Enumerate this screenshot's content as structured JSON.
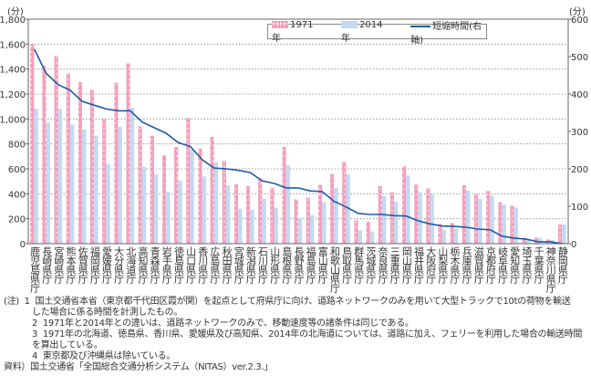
{
  "chart_data": {
    "type": "bar",
    "left_unit": "(分)",
    "right_unit": "(分)",
    "ylim": [
      0,
      1800
    ],
    "y2lim": [
      0,
      600
    ],
    "yticks": [
      "0",
      "200",
      "400",
      "600",
      "800",
      "1,000",
      "1,200",
      "1,400",
      "1,600",
      "1,800"
    ],
    "y2ticks": [
      "0",
      "100",
      "200",
      "300",
      "400",
      "500",
      "600"
    ],
    "grid": "dotted horizontal",
    "legend_placement": "top-right",
    "categories": [
      "鹿児島県庁",
      "長崎県庁",
      "宮崎県庁",
      "熊本県庁",
      "佐賀県庁",
      "福岡県庁",
      "愛媛県庁",
      "大分県庁",
      "北海道庁",
      "高知県庁",
      "青森県庁",
      "岩手県庁",
      "徳島県庁",
      "山口県庁",
      "香川県庁",
      "広島県庁",
      "秋田県庁",
      "宮城県庁",
      "新潟県庁",
      "石川県庁",
      "山形県庁",
      "島根県庁",
      "長野県庁",
      "福島県庁",
      "富山県庁",
      "和歌山県庁",
      "鳥取県庁",
      "群馬県庁",
      "茨城県庁",
      "奈良県庁",
      "三重県庁",
      "岡山県庁",
      "福井県庁",
      "大阪府庁",
      "山梨県庁",
      "栃木県庁",
      "兵庫県庁",
      "滋賀県庁",
      "京都府庁",
      "岐阜県庁",
      "愛知県庁",
      "埼玉県庁",
      "千葉県庁",
      "神奈川県庁",
      "静岡県庁"
    ],
    "series": [
      {
        "name": "1971年",
        "axis": "left",
        "type": "bar",
        "color": "#f4a0bd",
        "values": [
          1600,
          1425,
          1505,
          1365,
          1295,
          1235,
          1000,
          1290,
          1445,
          940,
          865,
          710,
          775,
          1010,
          763,
          856,
          666,
          476,
          461,
          527,
          449,
          776,
          356,
          368,
          471,
          559,
          654,
          188,
          176,
          461,
          412,
          620,
          473,
          446,
          159,
          166,
          468,
          398,
          422,
          332,
          305,
          49,
          51,
          34,
          154
        ]
      },
      {
        "name": "2014年",
        "axis": "left",
        "type": "bar",
        "color": "#c5d9f1",
        "values": [
          1080,
          970,
          1080,
          955,
          915,
          865,
          640,
          935,
          1090,
          615,
          555,
          415,
          505,
          750,
          539,
          654,
          466,
          280,
          271,
          359,
          288,
          627,
          207,
          227,
          332,
          446,
          556,
          107,
          98,
          383,
          337,
          546,
          412,
          393,
          112,
          120,
          424,
          359,
          385,
          312,
          290,
          37,
          46,
          29,
          154
        ]
      },
      {
        "name": "短縮時間(右軸)",
        "axis": "right",
        "type": "line",
        "color": "#1f5aa6",
        "values": [
          520,
          455,
          425,
          410,
          380,
          370,
          360,
          355,
          355,
          325,
          310,
          295,
          270,
          260,
          224,
          202,
          200,
          196,
          190,
          168,
          161,
          149,
          149,
          141,
          139,
          113,
          98,
          81,
          78,
          78,
          75,
          74,
          61,
          53,
          47,
          46,
          44,
          39,
          37,
          20,
          15,
          12,
          5,
          5,
          0
        ]
      }
    ]
  },
  "notes": [
    {
      "mark": "(注)",
      "num": "1",
      "text": "国土交通省本省（東京都千代田区霞が関）を起点として府県庁に向け、道路ネットワークのみを用いて大型トラックで10tの荷物を輸送",
      "cont": "した場合に係る時間を計測したもの。"
    },
    {
      "num": "2",
      "text": "1971年と2014年との違いは、道路ネットワークのみで、移動速度等の諸条件は同じである。"
    },
    {
      "num": "3",
      "text": "1971年の北海道、徳島県、香川県、愛媛県及び高知県、2014年の北海道については、道路に加え、フェリーを利用した場合の輸送時間",
      "cont": "を算出している。"
    },
    {
      "num": "4",
      "text": "東京都及び沖縄県は除いている。"
    }
  ],
  "source": "資料）国土交通省「全国総合交通分析システム（NITAS）ver.2.3.」"
}
